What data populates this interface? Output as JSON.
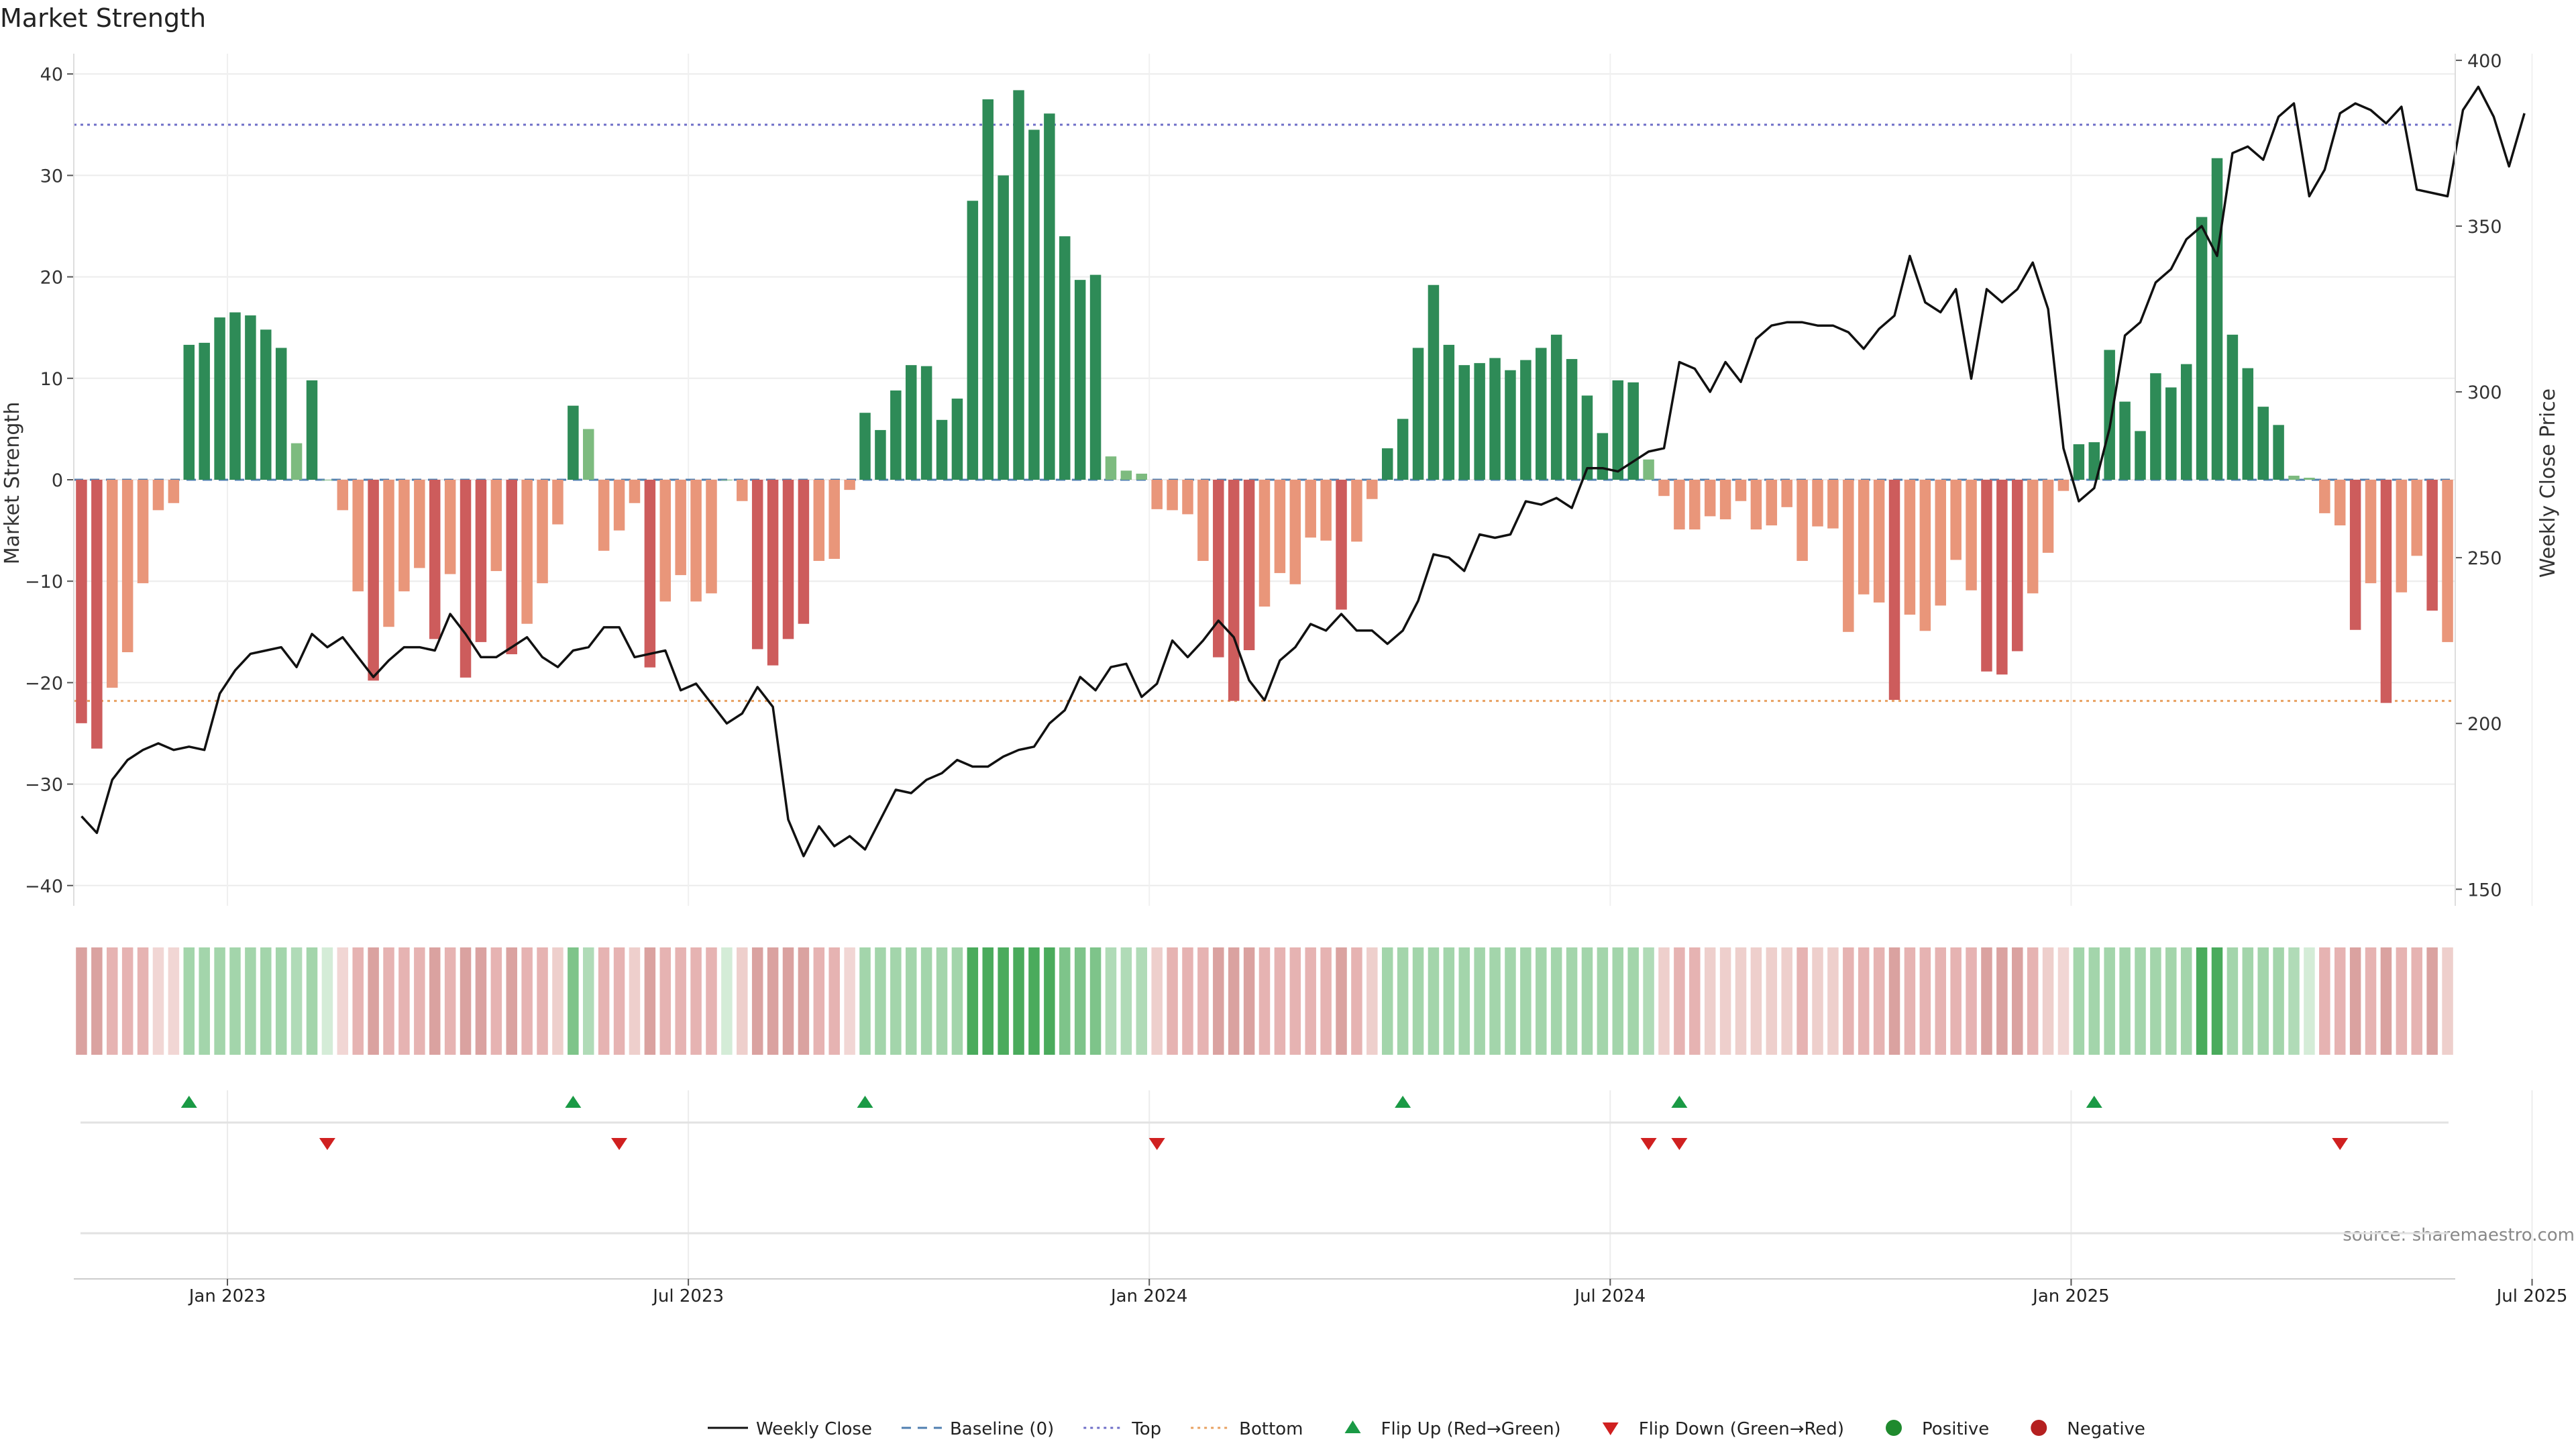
{
  "chart_data": {
    "type": "bar",
    "title": "Market Strength",
    "ylabel": "Market Strength",
    "ylabel_right": "Weekly Close Price",
    "ylim": [
      -42,
      42
    ],
    "ylim_right": [
      145,
      402
    ],
    "yticks": [
      40,
      30,
      20,
      10,
      0,
      -10,
      -20,
      -30,
      -40
    ],
    "yticks_right": [
      400,
      350,
      300,
      250,
      200,
      150
    ],
    "x_tick_labels": [
      "Jan 2023",
      "Jul 2023",
      "Jan 2024",
      "Jul 2024",
      "Jan 2025",
      "Jul 2025"
    ],
    "x_tick_index": [
      10,
      40,
      70,
      100,
      130,
      160
    ],
    "top_line": 35,
    "bottom_line": -21.8,
    "grid": true,
    "legend_position": "bottom-center",
    "source": "source: sharemaestro.com",
    "legend": [
      {
        "label": "Weekly Close",
        "kind": "line-solid"
      },
      {
        "label": "Baseline (0)",
        "kind": "line-dash"
      },
      {
        "label": "Top",
        "kind": "line-dot"
      },
      {
        "label": "Bottom",
        "kind": "line-dot-orange"
      },
      {
        "label": "Flip Up (Red→Green)",
        "kind": "tri-up"
      },
      {
        "label": "Flip Down (Green→Red)",
        "kind": "tri-down"
      },
      {
        "label": "Positive",
        "kind": "dot-green"
      },
      {
        "label": "Negative",
        "kind": "dot-red"
      }
    ],
    "colors": {
      "pos_strong": "#2e8b57",
      "pos_light": "#7dbb7f",
      "neg_strong": "#cd5c5c",
      "neg_light": "#e9967a",
      "price": "#111111",
      "top": "#6e6ec8",
      "bottom": "#e8a060",
      "baseline": "#4f7fb0",
      "flip_up": "#1a9a45",
      "flip_down": "#d02020"
    },
    "series": [
      {
        "name": "Market Strength",
        "values": [
          -24,
          -26.5,
          -20.5,
          -17,
          -10.2,
          -3,
          -2.3,
          13.3,
          13.5,
          16,
          16.5,
          16.2,
          14.8,
          13,
          3.6,
          9.8,
          0,
          -3,
          -11,
          -19.8,
          -14.5,
          -11,
          -8.7,
          -15.7,
          -9.3,
          -19.5,
          -16,
          -9,
          -17.2,
          -14.2,
          -10.2,
          -4.4,
          7.3,
          5,
          -7,
          -5,
          -2.3,
          -18.5,
          -12,
          -9.4,
          -12,
          -11.2,
          0,
          -2.1,
          -16.7,
          -18.3,
          -15.7,
          -14.2,
          -8,
          -7.8,
          -1,
          6.6,
          4.9,
          8.8,
          11.3,
          11.2,
          5.9,
          8,
          27.5,
          37.5,
          30,
          38.4,
          34.5,
          36.1,
          24,
          19.7,
          20.2,
          2.3,
          0.9,
          0.6,
          -2.9,
          -3,
          -3.4,
          -8,
          -17.5,
          -21.8,
          -16.8,
          -12.5,
          -9.2,
          -10.3,
          -5.7,
          -6,
          -12.8,
          -6.1,
          -1.9,
          3.1,
          6,
          13,
          19.2,
          13.3,
          11.3,
          11.5,
          12,
          10.8,
          11.8,
          13,
          14.3,
          11.9,
          8.3,
          4.6,
          9.8,
          9.6,
          2,
          -1.6,
          -4.9,
          -4.9,
          -3.6,
          -3.9,
          -2.1,
          -4.9,
          -4.5,
          -2.7,
          -8,
          -4.6,
          -4.8,
          -15,
          -11.3,
          -12.1,
          -21.7,
          -13.3,
          -14.9,
          -12.4,
          -7.9,
          -10.9,
          -18.9,
          -19.2,
          -16.9,
          -11.2,
          -7.2,
          -1.1,
          3.5,
          3.7,
          12.8,
          7.7,
          4.8,
          10.5,
          9.1,
          11.4,
          25.9,
          31.7,
          14.3,
          11,
          7.2,
          5.4,
          0.4,
          0.2,
          -3.3,
          -4.5,
          -14.8,
          -10.2,
          -22,
          -11.1,
          -7.5,
          -12.9,
          -16
        ],
        "shades": [
          4,
          4,
          3,
          3,
          3,
          1,
          1,
          6,
          6,
          6,
          6,
          6,
          6,
          6,
          5,
          6,
          0,
          1,
          3,
          4,
          3,
          3,
          3,
          4,
          3,
          4,
          4,
          3,
          4,
          3,
          3,
          2,
          7,
          5,
          3,
          3,
          2,
          4,
          3,
          3,
          3,
          3,
          0,
          2,
          4,
          4,
          4,
          4,
          3,
          3,
          1,
          6,
          6,
          6,
          6,
          6,
          6,
          6,
          8,
          8,
          8,
          8,
          8,
          8,
          7,
          7,
          7,
          5,
          5,
          5,
          2,
          3,
          3,
          3,
          4,
          4,
          4,
          3,
          3,
          3,
          3,
          3,
          4,
          3,
          2,
          6,
          6,
          6,
          6,
          6,
          6,
          6,
          6,
          6,
          6,
          6,
          6,
          6,
          6,
          6,
          6,
          6,
          5,
          2,
          3,
          3,
          2,
          2,
          2,
          2,
          2,
          2,
          3,
          2,
          2,
          3,
          3,
          3,
          4,
          3,
          3,
          3,
          3,
          3,
          4,
          4,
          4,
          3,
          2,
          1,
          6,
          6,
          6,
          6,
          6,
          6,
          6,
          6,
          8,
          8,
          6,
          6,
          6,
          6,
          5,
          2,
          3,
          3,
          4,
          3,
          4,
          3,
          3,
          4,
          2
        ]
      },
      {
        "name": "Weekly Close",
        "values": [
          172,
          167,
          183,
          189,
          192,
          194,
          192,
          193,
          192,
          209,
          216,
          221,
          222,
          223,
          217,
          227,
          223,
          226,
          220,
          214,
          219,
          223,
          223,
          222,
          233,
          227,
          220,
          220,
          223,
          226,
          220,
          217,
          222,
          223,
          229,
          229,
          220,
          221,
          222,
          210,
          212,
          206,
          200,
          203,
          211,
          205,
          171,
          160,
          169,
          163,
          166,
          162,
          171,
          180,
          179,
          183,
          185,
          189,
          187,
          187,
          190,
          192,
          193,
          200,
          204,
          214,
          210,
          217,
          218,
          208,
          212,
          225,
          220,
          225,
          231,
          226,
          213,
          207,
          219,
          223,
          230,
          228,
          233,
          228,
          228,
          224,
          228,
          237,
          251,
          250,
          246,
          257,
          256,
          257,
          267,
          266,
          268,
          265,
          277,
          277,
          276,
          279,
          282,
          283,
          309,
          307,
          300,
          309,
          303,
          316,
          320,
          321,
          321,
          320,
          320,
          318,
          313,
          319,
          323,
          341,
          327,
          324,
          331,
          304,
          331,
          327,
          331,
          339,
          325,
          283,
          267,
          271,
          289,
          317,
          321,
          333,
          337,
          346,
          350,
          341,
          372,
          374,
          370,
          383,
          387,
          359,
          367,
          384,
          387,
          385,
          381,
          386,
          361,
          360,
          359,
          385,
          392,
          383,
          368,
          384
        ]
      }
    ],
    "flip_up_index": [
      7,
      32,
      51,
      86,
      104,
      131
    ],
    "flip_down_index": [
      16,
      35,
      70,
      102,
      104,
      147
    ]
  }
}
